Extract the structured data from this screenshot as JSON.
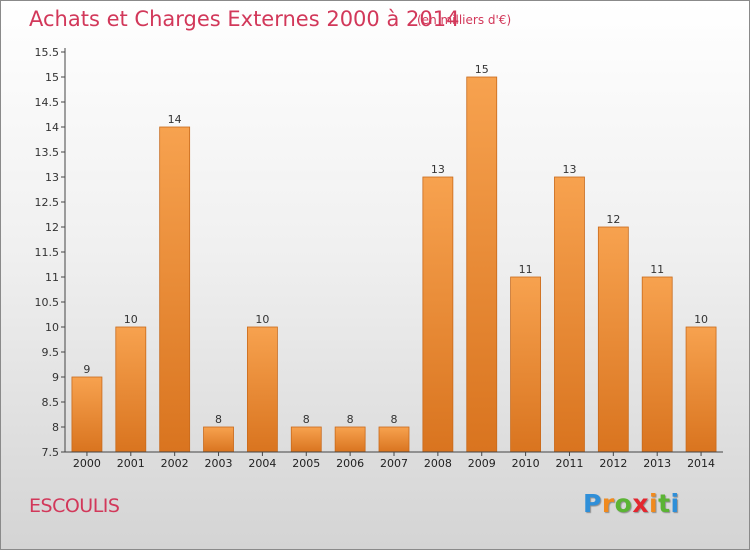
{
  "header": {
    "title": "Achats et Charges Externes 2000 à 2014",
    "unit_note": "(en milliers d'€)"
  },
  "footer": {
    "town": "ESCOULIS",
    "logo_letters": [
      "P",
      "r",
      "o",
      "x",
      "i",
      "t",
      "i"
    ],
    "logo_colors": [
      "#2f8fd8",
      "#f08a1e",
      "#5bb434",
      "#e3262f",
      "#f08a1e",
      "#5bb434",
      "#2f8fd8"
    ]
  },
  "colors": {
    "bar_top": "#f7a24f",
    "bar_bottom": "#d9741f",
    "bar_edge": "#c86a1c",
    "axis": "#444444",
    "grid": "#c8c8c8"
  },
  "chart_data": {
    "type": "bar",
    "title": "Achats et Charges Externes 2000 à 2014",
    "categories": [
      "2000",
      "2001",
      "2002",
      "2003",
      "2004",
      "2005",
      "2006",
      "2007",
      "2008",
      "2009",
      "2010",
      "2011",
      "2012",
      "2013",
      "2014"
    ],
    "values": [
      9,
      10,
      14,
      8,
      10,
      8,
      8,
      8,
      13,
      15,
      11,
      13,
      12,
      11,
      10
    ],
    "value_labels": [
      "9",
      "10",
      "14",
      "8",
      "10",
      "8",
      "8",
      "8",
      "13",
      "15",
      "11",
      "13",
      "12",
      "11",
      "10"
    ],
    "ylim": [
      7.5,
      15.5
    ],
    "yticks": [
      "7.5",
      "8",
      "8.5",
      "9",
      "9.5",
      "10",
      "10.5",
      "11",
      "11.5",
      "12",
      "12.5",
      "13",
      "13.5",
      "14",
      "14.5",
      "15",
      "15.5"
    ],
    "grid": false,
    "xlabel": "",
    "ylabel": ""
  }
}
